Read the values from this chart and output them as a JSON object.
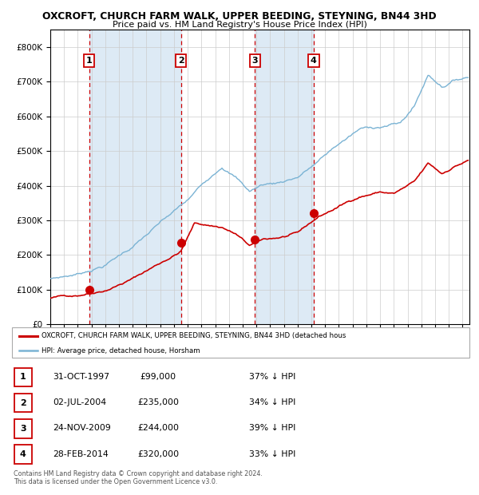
{
  "title1": "OXCROFT, CHURCH FARM WALK, UPPER BEEDING, STEYNING, BN44 3HD",
  "title2": "Price paid vs. HM Land Registry's House Price Index (HPI)",
  "purchases": [
    {
      "label": "1",
      "date_num": 1997.83,
      "price": 99000
    },
    {
      "label": "2",
      "date_num": 2004.5,
      "price": 235000
    },
    {
      "label": "3",
      "date_num": 2009.9,
      "price": 244000
    },
    {
      "label": "4",
      "date_num": 2014.16,
      "price": 320000
    }
  ],
  "table_rows": [
    {
      "num": "1",
      "date": "31-OCT-1997",
      "price": "£99,000",
      "pct": "37% ↓ HPI"
    },
    {
      "num": "2",
      "date": "02-JUL-2004",
      "price": "£235,000",
      "pct": "34% ↓ HPI"
    },
    {
      "num": "3",
      "date": "24-NOV-2009",
      "price": "£244,000",
      "pct": "39% ↓ HPI"
    },
    {
      "num": "4",
      "date": "28-FEB-2014",
      "price": "£320,000",
      "pct": "33% ↓ HPI"
    }
  ],
  "legend_line1": "OXCROFT, CHURCH FARM WALK, UPPER BEEDING, STEYNING, BN44 3HD (detached hous",
  "legend_line2": "HPI: Average price, detached house, Horsham",
  "footer": "Contains HM Land Registry data © Crown copyright and database right 2024.\nThis data is licensed under the Open Government Licence v3.0.",
  "hpi_color": "#7ab3d4",
  "price_color": "#cc0000",
  "bg_shaded": "#ddeaf5",
  "vline_color": "#cc0000",
  "ylim_max": 850000,
  "xlim_start": 1995.0,
  "xlim_end": 2025.5
}
